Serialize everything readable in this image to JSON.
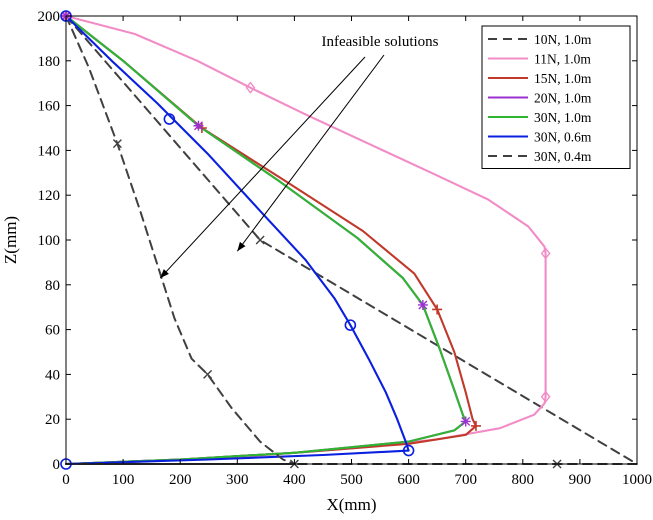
{
  "chart_data": {
    "type": "line",
    "title": "",
    "xlabel": "X(mm)",
    "ylabel": "Z(mm)",
    "xlim": [
      0,
      1000
    ],
    "ylim": [
      0,
      200
    ],
    "xticks": [
      0,
      100,
      200,
      300,
      400,
      500,
      600,
      700,
      800,
      900,
      1000
    ],
    "yticks": [
      0,
      20,
      40,
      60,
      80,
      100,
      120,
      140,
      160,
      180,
      200
    ],
    "grid": false,
    "legend_position": "top-right",
    "annotation": {
      "text": "Infeasible solutions",
      "targets": [
        [
          300,
          95
        ],
        [
          165,
          83
        ]
      ]
    },
    "series": [
      {
        "name": "10N, 1.0m",
        "color": "#404040",
        "dash": "dashed",
        "marker": "x",
        "x": [
          0,
          340,
          1000,
          860,
          0
        ],
        "y": [
          200,
          100,
          0,
          0,
          0
        ],
        "marker_points": [
          [
            340,
            100
          ],
          [
            860,
            0
          ]
        ]
      },
      {
        "name": "11N, 1.0m",
        "color": "#f28cc6",
        "dash": "solid",
        "marker": "diamond",
        "x": [
          0,
          120,
          230,
          323,
          420,
          530,
          640,
          740,
          810,
          838,
          840,
          840,
          840,
          838,
          820,
          760,
          650,
          500,
          300,
          120,
          0
        ],
        "y": [
          200,
          192,
          180,
          168,
          156,
          143,
          130,
          118,
          106,
          97,
          94,
          60,
          30,
          27,
          22,
          16,
          11,
          7,
          3,
          1,
          0
        ],
        "marker_points": [
          [
            0,
            200
          ],
          [
            323,
            168
          ],
          [
            840,
            94
          ],
          [
            840,
            30
          ]
        ]
      },
      {
        "name": "15N, 1.0m",
        "color": "#c0392b",
        "dash": "solid",
        "marker": "plus",
        "x": [
          0,
          100,
          238,
          380,
          520,
          610,
          650,
          680,
          700,
          712,
          718,
          700,
          600,
          400,
          200,
          0
        ],
        "y": [
          200,
          180,
          150,
          127,
          104,
          85,
          69,
          50,
          32,
          20,
          17,
          13,
          9,
          5,
          2,
          0
        ],
        "marker_points": [
          [
            0,
            200
          ],
          [
            238,
            150
          ],
          [
            650,
            69
          ],
          [
            718,
            17
          ]
        ]
      },
      {
        "name": "20N, 1.0m",
        "color": "#9b30d0",
        "dash": "solid",
        "marker": "asterisk",
        "x": [
          0,
          100,
          232,
          375,
          510,
          590,
          625,
          655,
          680,
          695,
          700,
          680,
          600,
          400,
          200,
          0
        ],
        "y": [
          200,
          180,
          151,
          126,
          101,
          83,
          71,
          51,
          33,
          22,
          19,
          15,
          10,
          5,
          2,
          0
        ],
        "marker_points": [
          [
            0,
            200
          ],
          [
            232,
            151
          ],
          [
            625,
            71
          ],
          [
            700,
            19
          ]
        ]
      },
      {
        "name": "30N, 1.0m",
        "color": "#2fb52f",
        "dash": "solid",
        "marker": "none",
        "x": [
          0,
          100,
          232,
          375,
          510,
          590,
          625,
          655,
          680,
          695,
          700,
          680,
          600,
          400,
          200,
          0
        ],
        "y": [
          200,
          180,
          151,
          126,
          101,
          83,
          71,
          51,
          33,
          22,
          19,
          15,
          10,
          5,
          2,
          0
        ],
        "marker_points": []
      },
      {
        "name": "30N, 0.6m",
        "color": "#0a1fe0",
        "dash": "solid",
        "marker": "circle",
        "x": [
          0,
          80,
          160,
          250,
          340,
          420,
          470,
          498,
          530,
          560,
          580,
          595,
          600,
          450,
          250,
          0
        ],
        "y": [
          200,
          180,
          161,
          138,
          113,
          91,
          74,
          62,
          47,
          32,
          20,
          10,
          6,
          4,
          2,
          0
        ],
        "marker_points": [
          [
            0,
            200
          ],
          [
            181,
            154
          ],
          [
            498,
            62
          ],
          [
            600,
            6
          ],
          [
            0,
            0
          ]
        ]
      },
      {
        "name": "30N, 0.4m",
        "color": "#404040",
        "dash": "dashed",
        "marker": "x",
        "x": [
          0,
          40,
          90,
          130,
          165,
          190,
          220,
          248,
          290,
          340,
          380,
          400,
          0
        ],
        "y": [
          200,
          177,
          143,
          113,
          85,
          65,
          47,
          40,
          25,
          10,
          2,
          0,
          0
        ],
        "marker_points": [
          [
            90,
            143
          ],
          [
            248,
            40
          ],
          [
            400,
            0
          ]
        ]
      }
    ]
  }
}
